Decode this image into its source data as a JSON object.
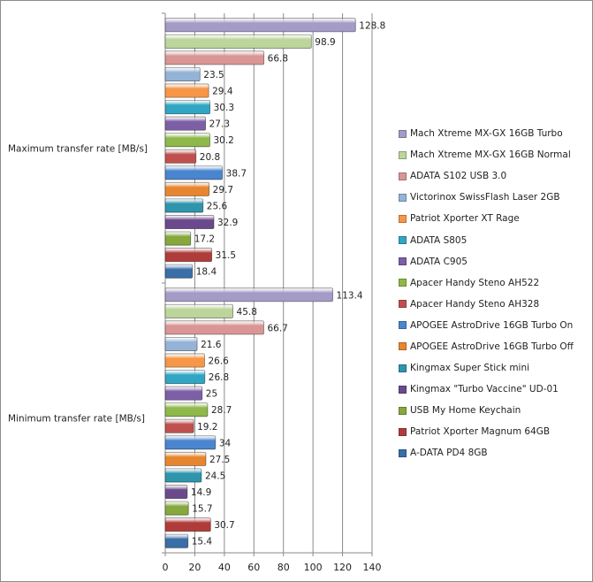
{
  "chart_data": {
    "type": "bar",
    "orientation": "horizontal",
    "title": "",
    "xlabel": "",
    "ylabel": "",
    "xlim": [
      0,
      140
    ],
    "xticks": [
      0,
      20,
      40,
      60,
      80,
      100,
      120,
      140
    ],
    "grid": "vertical",
    "legend_position": "right",
    "categories": [
      "Maximum transfer rate [MB/s]",
      "Minimum transfer rate [MB/s]"
    ],
    "series": [
      {
        "name": "Mach Xtreme MX-GX 16GB Turbo",
        "color": "#a59bc7",
        "values": [
          128.8,
          113.4
        ]
      },
      {
        "name": "Mach Xtreme MX-GX 16GB Normal",
        "color": "#bcd59a",
        "values": [
          98.9,
          45.8
        ]
      },
      {
        "name": "ADATA S102 USB 3.0",
        "color": "#d99694",
        "values": [
          66.8,
          66.7
        ]
      },
      {
        "name": "Victorinox SwissFlash Laser 2GB",
        "color": "#95b3d7",
        "values": [
          23.5,
          21.6
        ]
      },
      {
        "name": "Patriot Xporter XT Rage",
        "color": "#f79646",
        "values": [
          29.4,
          26.6
        ]
      },
      {
        "name": "ADATA S805",
        "color": "#31a6c4",
        "values": [
          30.3,
          26.8
        ]
      },
      {
        "name": "ADATA C905",
        "color": "#7d5fa6",
        "values": [
          27.3,
          25
        ]
      },
      {
        "name": "Apacer Handy Steno AH522",
        "color": "#8fb84a",
        "values": [
          30.2,
          28.7
        ]
      },
      {
        "name": "Apacer Handy Steno AH328",
        "color": "#c0504d",
        "values": [
          20.8,
          19.2
        ]
      },
      {
        "name": "APOGEE AstroDrive 16GB Turbo On",
        "color": "#4a86cf",
        "values": [
          38.7,
          34
        ]
      },
      {
        "name": "APOGEE AstroDrive 16GB Turbo Off",
        "color": "#e8862f",
        "values": [
          29.7,
          27.5
        ]
      },
      {
        "name": "Kingmax Super Stick mini",
        "color": "#2e95ad",
        "values": [
          25.6,
          24.5
        ]
      },
      {
        "name": "Kingmax \"Turbo Vaccine\" UD-01",
        "color": "#6a4a8c",
        "values": [
          32.9,
          14.9
        ]
      },
      {
        "name": "USB My Home Keychain",
        "color": "#86a83c",
        "values": [
          17.2,
          15.7
        ]
      },
      {
        "name": "Patriot Xporter Magnum 64GB",
        "color": "#b03c3a",
        "values": [
          31.5,
          30.7
        ]
      },
      {
        "name": "A-DATA PD4 8GB",
        "color": "#3a6ea8",
        "values": [
          18.4,
          15.4
        ]
      }
    ]
  }
}
